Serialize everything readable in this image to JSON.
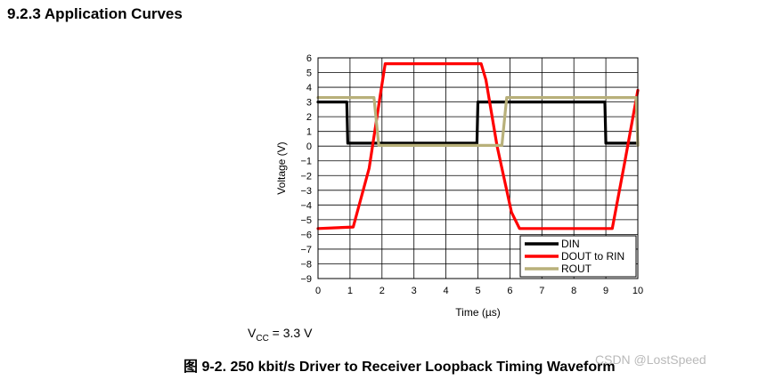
{
  "heading": "9.2.3 Application Curves",
  "note": {
    "prefix": "V",
    "sub": "CC",
    "rest": " = 3.3 V"
  },
  "caption": "图 9-2. 250 kbit/s Driver to Receiver Loopback Timing Waveform",
  "watermark": "CSDN @LostSpeed",
  "chart_data": {
    "type": "line",
    "xlabel": "Time (µs)",
    "ylabel": "Voltage (V)",
    "xlim": [
      0,
      10
    ],
    "ylim": [
      -9,
      6
    ],
    "xticks": [
      "0",
      "1",
      "2",
      "3",
      "4",
      "5",
      "6",
      "7",
      "8",
      "9",
      "10"
    ],
    "yticks": [
      "6",
      "5",
      "4",
      "3",
      "2",
      "1",
      "0",
      "−1",
      "−2",
      "−3",
      "−4",
      "−5",
      "−6",
      "−7",
      "−8",
      "−9"
    ],
    "grid": true,
    "legend_position": "bottom-right",
    "series": [
      {
        "name": "DIN",
        "color": "#000000",
        "x": [
          0,
          0.9,
          0.93,
          4.97,
          5.0,
          8.97,
          9.0,
          10
        ],
        "y": [
          3.0,
          3.0,
          0.2,
          0.2,
          3.0,
          3.0,
          0.2,
          0.2
        ]
      },
      {
        "name": "DOUT to RIN",
        "color": "#ff0000",
        "x": [
          0,
          1.1,
          1.6,
          1.95,
          2.1,
          5.1,
          5.25,
          5.6,
          6.05,
          6.3,
          9.2,
          9.6,
          10
        ],
        "y": [
          -5.6,
          -5.5,
          -1.5,
          3.5,
          5.6,
          5.6,
          4.5,
          0.0,
          -4.5,
          -5.6,
          -5.6,
          -1.0,
          3.8
        ]
      },
      {
        "name": "ROUT",
        "color": "#b8b07a",
        "x": [
          0,
          1.75,
          1.9,
          5.75,
          5.9,
          9.95,
          10
        ],
        "y": [
          3.3,
          3.3,
          0.05,
          0.05,
          3.3,
          3.3,
          0.05
        ]
      }
    ]
  }
}
